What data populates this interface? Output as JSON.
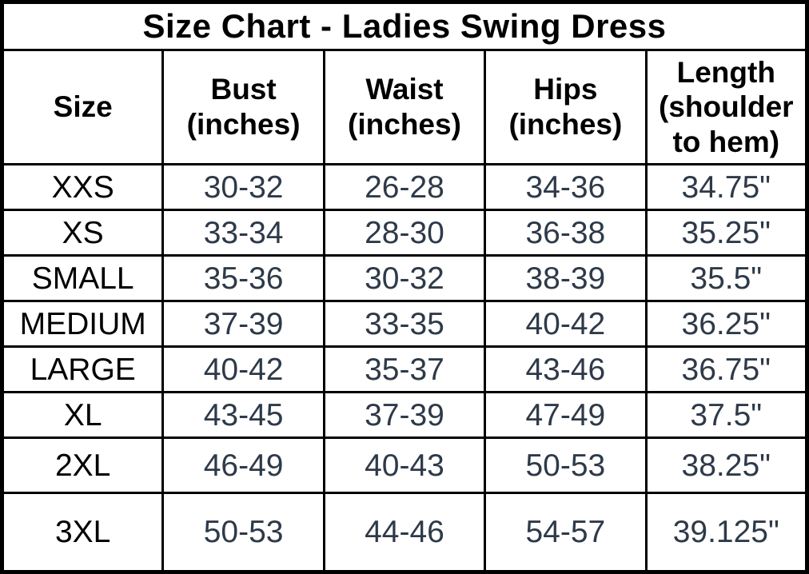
{
  "chart_data": {
    "type": "table",
    "title": "Size Chart - Ladies Swing Dress",
    "columns": [
      "Size",
      "Bust\n(inches)",
      "Waist\n(inches)",
      "Hips\n(inches)",
      "Length\n(shoulder\nto hem)"
    ],
    "rows": [
      [
        "XXS",
        "30-32",
        "26-28",
        "34-36",
        "34.75\""
      ],
      [
        "XS",
        "33-34",
        "28-30",
        "36-38",
        "35.25\""
      ],
      [
        "SMALL",
        "35-36",
        "30-32",
        "38-39",
        "35.5\""
      ],
      [
        "MEDIUM",
        "37-39",
        "33-35",
        "40-42",
        "36.25\""
      ],
      [
        "LARGE",
        "40-42",
        "35-37",
        "43-46",
        "36.75\""
      ],
      [
        "XL",
        "43-45",
        "37-39",
        "47-49",
        "37.5\""
      ],
      [
        "2XL",
        "46-49",
        "40-43",
        "50-53",
        "38.25\""
      ],
      [
        "3XL",
        "50-53",
        "44-46",
        "54-57",
        "39.125\""
      ]
    ],
    "layout": {
      "grid": "on",
      "title_row_spans_all_columns": true
    }
  },
  "colors": {
    "background": "#FFFFFF",
    "border": "#000000",
    "heading_text": "#000000",
    "value_text": "#2E3A49"
  }
}
